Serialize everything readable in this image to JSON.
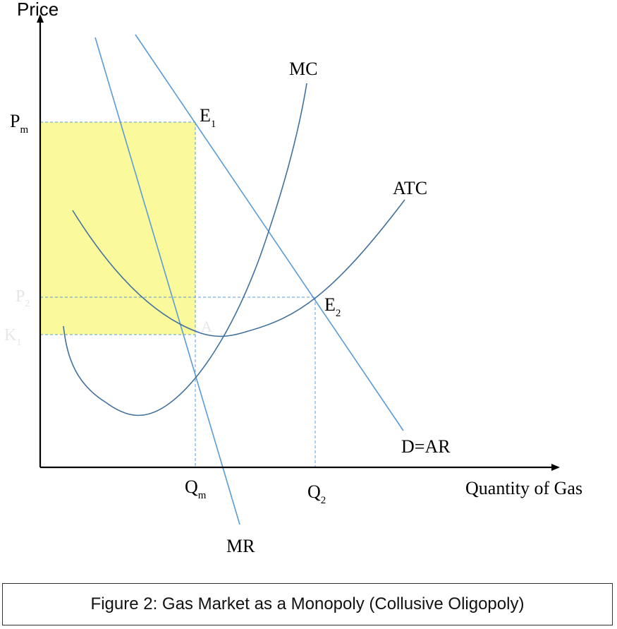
{
  "diagram": {
    "y_axis_label": "Price",
    "x_axis_label": "Quantity of Gas",
    "curves": {
      "mc": "MC",
      "atc": "ATC",
      "demand": "D=AR",
      "mr": "MR"
    },
    "points": {
      "e1": {
        "base": "E",
        "sub": "1"
      },
      "e2": {
        "base": "E",
        "sub": "2"
      },
      "a": "A"
    },
    "price_levels": {
      "pm": {
        "base": "P",
        "sub": "m"
      },
      "p2": {
        "base": "P",
        "sub": "2"
      },
      "k1": {
        "base": "K",
        "sub": "1"
      }
    },
    "quantity_levels": {
      "qm": {
        "base": "Q",
        "sub": "m"
      },
      "q2": {
        "base": "Q",
        "sub": "2"
      }
    },
    "colors": {
      "curve": "#5b9bd5",
      "atc_mc": "#41719c",
      "profit_area": "#fafa9c",
      "axis": "#000000",
      "faint_label": "#e6e6e6"
    }
  },
  "caption": "Figure 2: Gas Market as a Monopoly (Collusive Oligopoly)"
}
